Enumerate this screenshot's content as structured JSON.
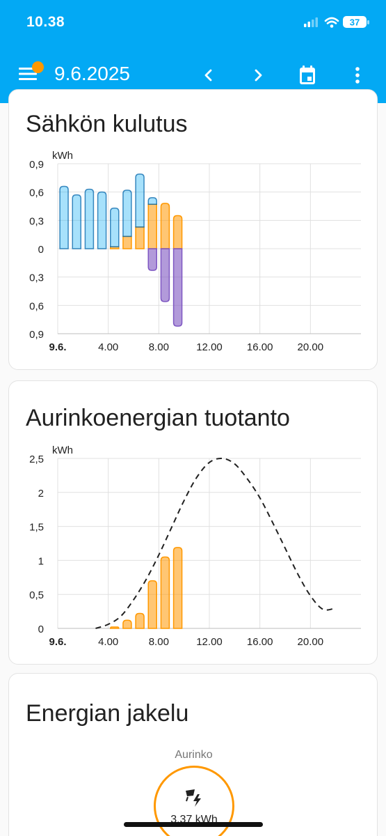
{
  "status_bar": {
    "time": "10.38",
    "battery": "37"
  },
  "app_bar": {
    "date": "9.6.2025",
    "icons": [
      "menu-icon",
      "chevron-left-icon",
      "chevron-right-icon",
      "calendar-icon",
      "more-vert-icon"
    ],
    "badge_color": "#ff9800",
    "background": "#03a9f4"
  },
  "consumption_card": {
    "title": "Sähkön kulutus",
    "unit": "kWh",
    "y_labels": [
      "0,9",
      "0,6",
      "0,3",
      "0",
      "0,3",
      "0,6",
      "0,9"
    ],
    "x_labels": [
      "9.6.",
      "4.00",
      "8.00",
      "12.00",
      "16.00",
      "20.00"
    ]
  },
  "solar_card": {
    "title": "Aurinkoenergian tuotanto",
    "unit": "kWh",
    "y_labels": [
      "2,5",
      "2",
      "1,5",
      "1",
      "0,5",
      "0"
    ],
    "x_labels": [
      "9.6.",
      "4.00",
      "8.00",
      "12.00",
      "16.00",
      "20.00"
    ]
  },
  "distribution_card": {
    "title": "Energian jakelu",
    "source_label": "Aurinko",
    "source_value": "3,37 kWh",
    "source_icon": "solar-power-icon"
  },
  "chart_data": [
    {
      "type": "bar",
      "title": "Sähkön kulutus",
      "ylabel": "kWh",
      "ylim": [
        -0.9,
        0.9
      ],
      "xlim": [
        0,
        24
      ],
      "x_ticks": [
        0,
        4,
        8,
        12,
        16,
        20
      ],
      "grid": true,
      "categories": [
        0,
        1,
        2,
        3,
        4,
        5,
        6,
        7,
        8,
        9
      ],
      "colors": {
        "grid": "#03a9f4",
        "solar": "#ff9800",
        "export": "#7e57c2"
      },
      "series": [
        {
          "name": "grid",
          "values": [
            0.66,
            0.57,
            0.63,
            0.6,
            0.41,
            0.49,
            0.56,
            0.07,
            0,
            0
          ]
        },
        {
          "name": "solar",
          "values": [
            0,
            0,
            0,
            0,
            0.02,
            0.13,
            0.23,
            0.47,
            0.48,
            0.35
          ]
        },
        {
          "name": "export",
          "values": [
            0,
            0,
            0,
            0,
            0,
            0,
            0,
            -0.23,
            -0.56,
            -0.82
          ]
        }
      ]
    },
    {
      "type": "bar",
      "title": "Aurinkoenergian tuotanto",
      "ylabel": "kWh",
      "ylim": [
        0,
        2.5
      ],
      "xlim": [
        0,
        24
      ],
      "x_ticks": [
        0,
        4,
        8,
        12,
        16,
        20
      ],
      "grid": true,
      "categories": [
        4,
        5,
        6,
        7,
        8,
        9
      ],
      "values": [
        0.02,
        0.12,
        0.22,
        0.7,
        1.05,
        1.19
      ],
      "forecast": {
        "x": [
          3,
          4,
          5,
          6,
          7,
          8,
          9,
          10,
          11,
          12,
          13,
          14,
          15,
          16,
          17,
          18,
          19,
          20,
          21,
          22
        ],
        "y": [
          0.0,
          0.06,
          0.18,
          0.42,
          0.72,
          1.08,
          1.48,
          1.88,
          2.22,
          2.44,
          2.5,
          2.42,
          2.2,
          1.92,
          1.56,
          1.18,
          0.8,
          0.48,
          0.28,
          0.3
        ]
      }
    }
  ]
}
